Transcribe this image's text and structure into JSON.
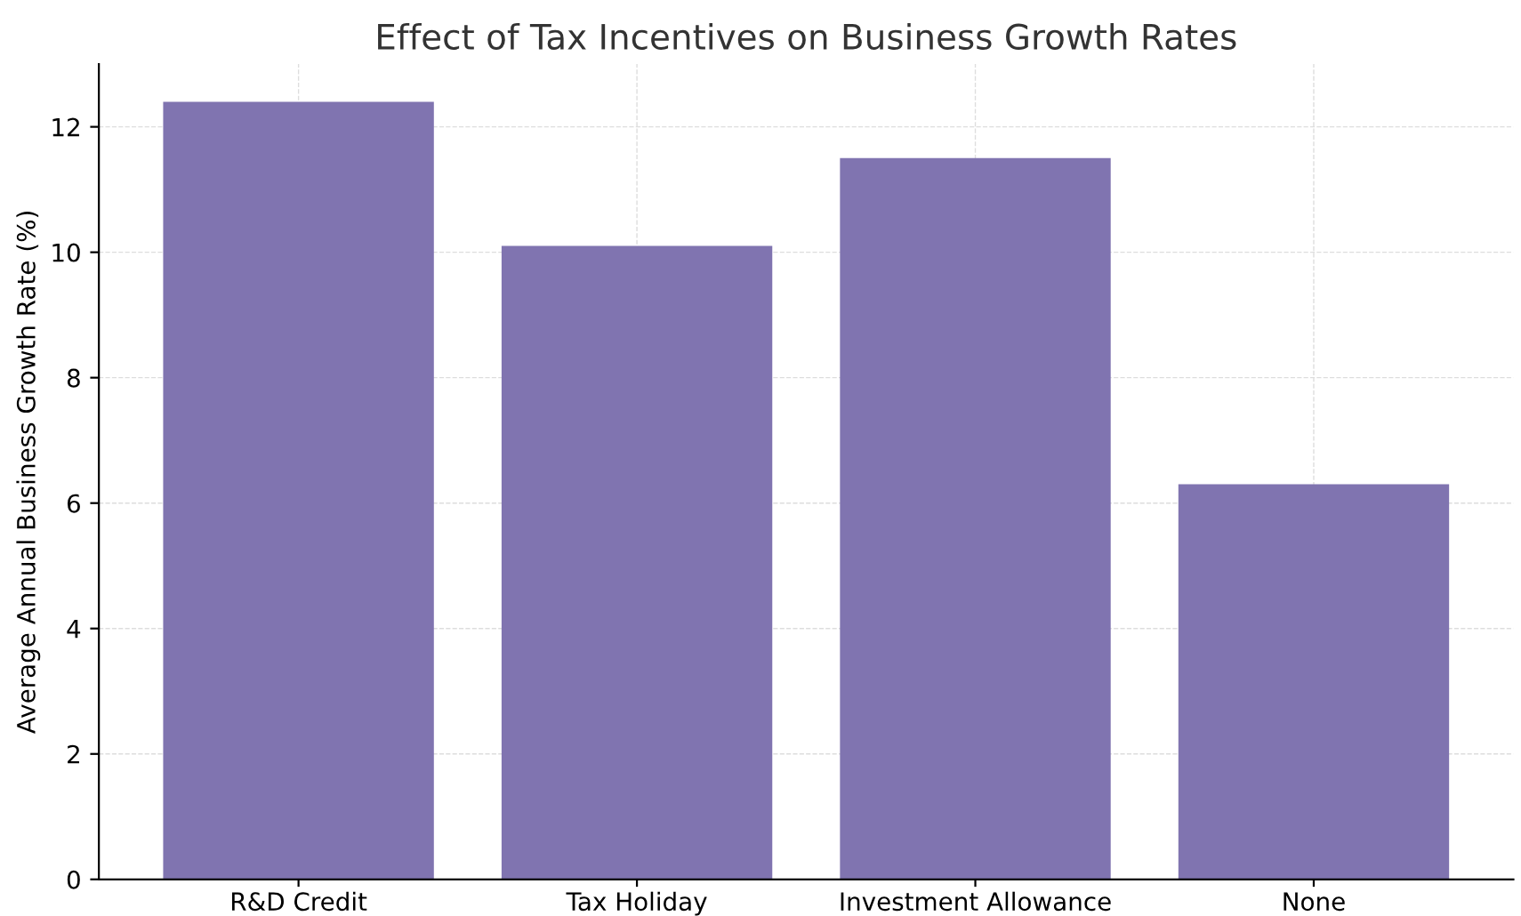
{
  "chart_data": {
    "type": "bar",
    "title": "Effect of Tax Incentives on Business Growth Rates",
    "ylabel": "Average Annual Business Growth Rate (%)",
    "categories": [
      "R&D Credit",
      "Tax Holiday",
      "Investment Allowance",
      "None"
    ],
    "values": [
      12.4,
      10.1,
      11.5,
      6.3
    ],
    "color": "#8074b0",
    "ylim": [
      0,
      13.0
    ],
    "yticks": [
      0,
      2,
      4,
      6,
      8,
      10,
      12
    ],
    "grid": true
  }
}
